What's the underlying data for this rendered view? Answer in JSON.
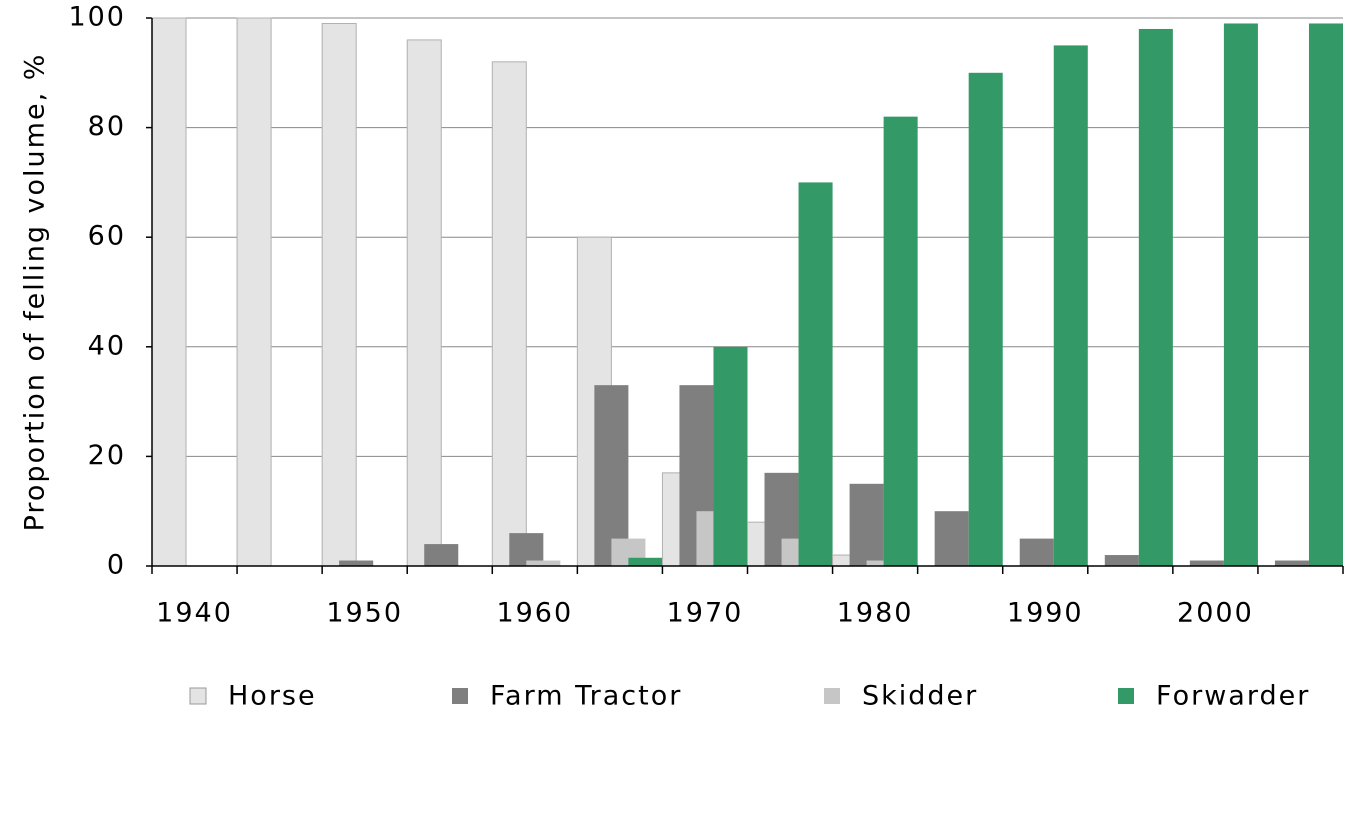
{
  "chart_data": {
    "type": "bar",
    "y_label": "Proportion of felling volume, %",
    "categories": [
      "1940",
      null,
      "1950",
      null,
      "1960",
      null,
      "1970",
      null,
      "1980",
      null,
      "1990",
      null,
      "2000",
      null
    ],
    "series": [
      {
        "name": "Horse",
        "color": "#e4e4e4",
        "values": [
          100,
          100,
          99,
          96,
          92,
          60,
          17,
          8,
          2,
          0,
          0,
          0,
          0,
          0
        ]
      },
      {
        "name": "Farm Tractor",
        "color": "#7f7f7f",
        "values": [
          0,
          0,
          1,
          4,
          6,
          33,
          33,
          17,
          15,
          10,
          5,
          2,
          1,
          1
        ]
      },
      {
        "name": "Skidder",
        "color": "#c6c6c6",
        "values": [
          0,
          0,
          0,
          0,
          1,
          5,
          10,
          5,
          1,
          0,
          0,
          0,
          0,
          0
        ]
      },
      {
        "name": "Forwarder",
        "color": "#339966",
        "values": [
          0,
          0,
          0,
          0,
          0,
          1.5,
          40,
          70,
          82,
          90,
          95,
          98,
          99,
          99
        ]
      }
    ],
    "ylim": [
      0,
      100
    ],
    "yticks": [
      0,
      20,
      40,
      60,
      80,
      100
    ],
    "grid": true
  }
}
